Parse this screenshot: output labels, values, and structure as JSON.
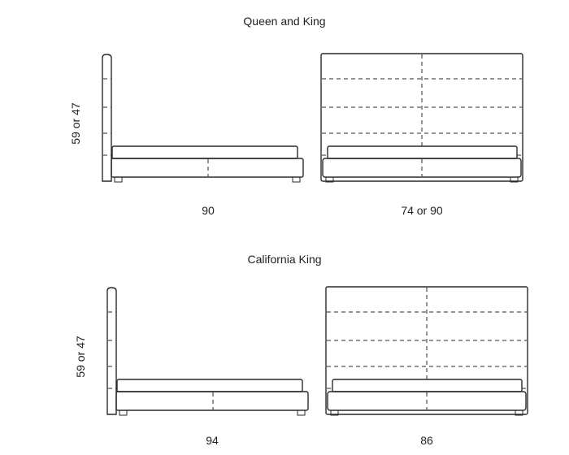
{
  "sections": [
    {
      "title": "Queen and King",
      "height_label": "59 or  47",
      "side_length_label": "90",
      "front_width_label": "74 or 90"
    },
    {
      "title": "California King",
      "height_label": "59 or  47",
      "side_length_label": "94",
      "front_width_label": "86"
    }
  ]
}
